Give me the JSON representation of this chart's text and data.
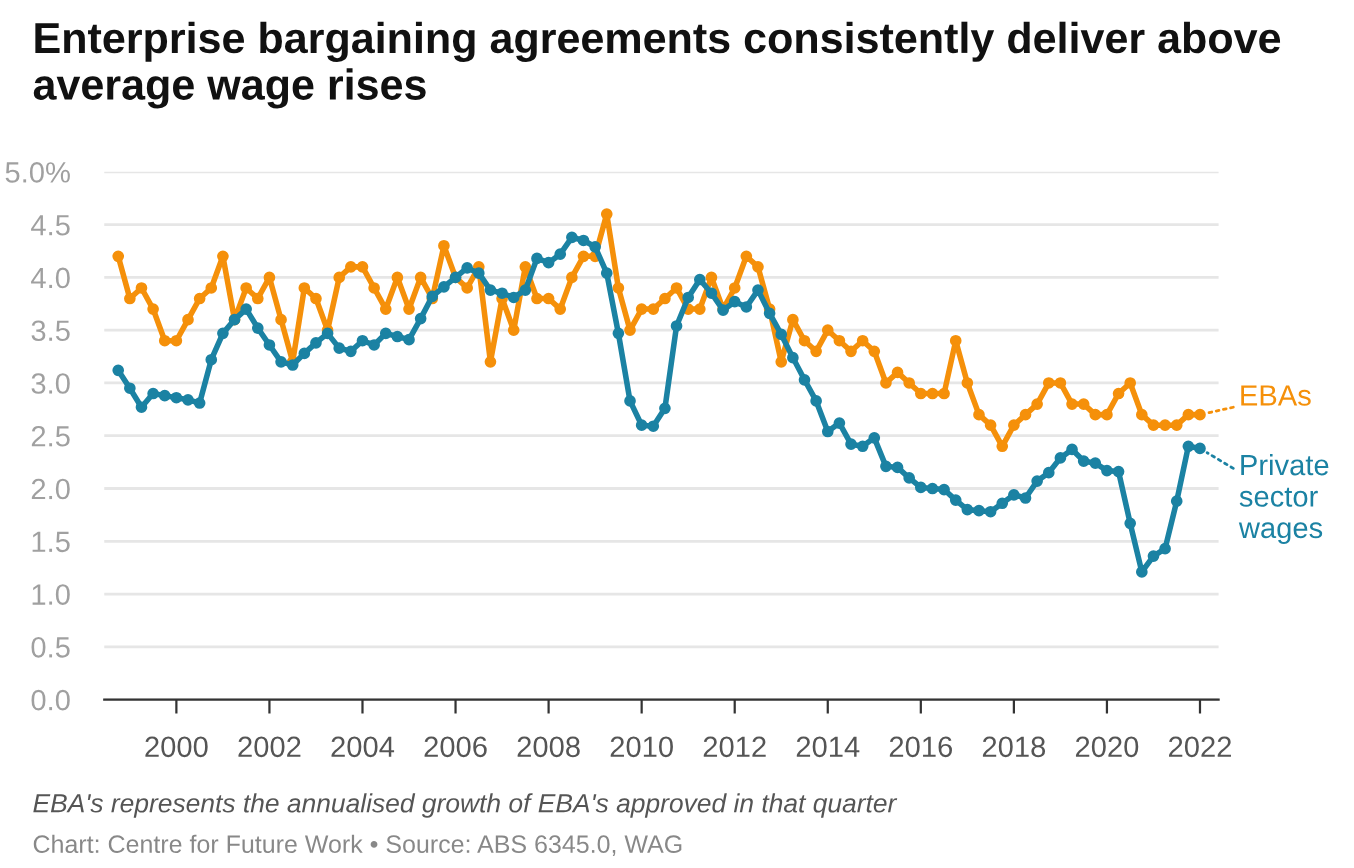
{
  "chart_data": {
    "type": "line",
    "title": "Enterprise bargaining agreements consistently deliver above average wage rises",
    "annotations": [
      "EBA's represents the annualised growth of EBA's approved in that quarter",
      "Chart: Centre for Future Work • Source: ABS 6345.0, WAG"
    ],
    "x": [
      1998.75,
      1999.0,
      1999.25,
      1999.5,
      1999.75,
      2000.0,
      2000.25,
      2000.5,
      2000.75,
      2001.0,
      2001.25,
      2001.5,
      2001.75,
      2002.0,
      2002.25,
      2002.5,
      2002.75,
      2003.0,
      2003.25,
      2003.5,
      2003.75,
      2004.0,
      2004.25,
      2004.5,
      2004.75,
      2005.0,
      2005.25,
      2005.5,
      2005.75,
      2006.0,
      2006.25,
      2006.5,
      2006.75,
      2007.0,
      2007.25,
      2007.5,
      2007.75,
      2008.0,
      2008.25,
      2008.5,
      2008.75,
      2009.0,
      2009.25,
      2009.5,
      2009.75,
      2010.0,
      2010.25,
      2010.5,
      2010.75,
      2011.0,
      2011.25,
      2011.5,
      2011.75,
      2012.0,
      2012.25,
      2012.5,
      2012.75,
      2013.0,
      2013.25,
      2013.5,
      2013.75,
      2014.0,
      2014.25,
      2014.5,
      2014.75,
      2015.0,
      2015.25,
      2015.5,
      2015.75,
      2016.0,
      2016.25,
      2016.5,
      2016.75,
      2017.0,
      2017.25,
      2017.5,
      2017.75,
      2018.0,
      2018.25,
      2018.5,
      2018.75,
      2019.0,
      2019.25,
      2019.5,
      2019.75,
      2020.0,
      2020.25,
      2020.5,
      2020.75,
      2021.0,
      2021.25,
      2021.5,
      2021.75,
      2022.0
    ],
    "series": [
      {
        "name": "EBAs",
        "color": "#f5900a",
        "values": [
          4.2,
          3.8,
          3.9,
          3.7,
          3.4,
          3.4,
          3.6,
          3.8,
          3.9,
          4.2,
          3.6,
          3.9,
          3.8,
          4.0,
          3.6,
          3.2,
          3.9,
          3.8,
          3.5,
          4.0,
          4.1,
          4.1,
          3.9,
          3.7,
          4.0,
          3.7,
          4.0,
          3.8,
          4.3,
          4.0,
          3.9,
          4.1,
          3.2,
          3.8,
          3.5,
          4.1,
          3.8,
          3.8,
          3.7,
          4.0,
          4.2,
          4.2,
          4.6,
          3.9,
          3.5,
          3.7,
          3.7,
          3.8,
          3.9,
          3.7,
          3.7,
          4.0,
          3.7,
          3.9,
          4.2,
          4.1,
          3.7,
          3.2,
          3.6,
          3.4,
          3.3,
          3.5,
          3.4,
          3.3,
          3.4,
          3.3,
          3.0,
          3.1,
          3.0,
          2.9,
          2.9,
          2.9,
          3.4,
          3.0,
          2.7,
          2.6,
          2.4,
          2.6,
          2.7,
          2.8,
          3.0,
          3.0,
          2.8,
          2.8,
          2.7,
          2.7,
          2.9,
          3.0,
          2.7,
          2.6,
          2.6,
          2.6,
          2.7,
          2.7
        ]
      },
      {
        "name": "Private sector wages",
        "color": "#1b82a3",
        "values": [
          3.12,
          2.95,
          2.77,
          2.9,
          2.88,
          2.86,
          2.84,
          2.81,
          3.22,
          3.47,
          3.6,
          3.7,
          3.52,
          3.36,
          3.2,
          3.17,
          3.28,
          3.38,
          3.47,
          3.33,
          3.3,
          3.4,
          3.36,
          3.47,
          3.44,
          3.41,
          3.61,
          3.82,
          3.91,
          4.0,
          4.09,
          4.04,
          3.88,
          3.85,
          3.81,
          3.88,
          4.18,
          4.14,
          4.22,
          4.38,
          4.35,
          4.29,
          4.04,
          3.47,
          2.83,
          2.6,
          2.59,
          2.76,
          3.54,
          3.81,
          3.98,
          3.85,
          3.69,
          3.77,
          3.72,
          3.88,
          3.66,
          3.46,
          3.24,
          3.03,
          2.83,
          2.54,
          2.62,
          2.42,
          2.4,
          2.48,
          2.21,
          2.2,
          2.1,
          2.01,
          2.0,
          1.99,
          1.89,
          1.8,
          1.79,
          1.78,
          1.86,
          1.94,
          1.91,
          2.07,
          2.15,
          2.29,
          2.37,
          2.26,
          2.24,
          2.17,
          2.16,
          1.67,
          1.21,
          1.36,
          1.43,
          1.88,
          2.4,
          2.38
        ]
      }
    ],
    "xlim": [
      1998.45,
      2022.4
    ],
    "xticks": [
      2000,
      2002,
      2004,
      2006,
      2008,
      2010,
      2012,
      2014,
      2016,
      2018,
      2020,
      2022
    ],
    "ylim": [
      0,
      5
    ],
    "yticks": [
      {
        "value": 0,
        "label": "0.0"
      },
      {
        "value": 0.5,
        "label": "0.5"
      },
      {
        "value": 1,
        "label": "1.0"
      },
      {
        "value": 1.5,
        "label": "1.5"
      },
      {
        "value": 2,
        "label": "2.0"
      },
      {
        "value": 2.5,
        "label": "2.5"
      },
      {
        "value": 3,
        "label": "3.0"
      },
      {
        "value": 3.5,
        "label": "3.5"
      },
      {
        "value": 4,
        "label": "4.0"
      },
      {
        "value": 4.5,
        "label": "4.5"
      },
      {
        "value": 5,
        "label": "5.0%"
      }
    ],
    "grid": "y",
    "legend": "right",
    "marker": "circle",
    "line_style": "solid"
  }
}
